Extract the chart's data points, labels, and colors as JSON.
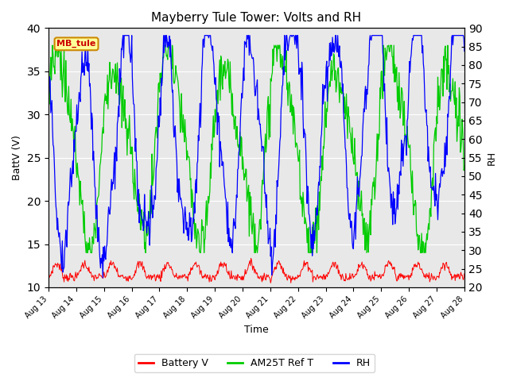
{
  "title": "Mayberry Tule Tower: Volts and RH",
  "xlabel": "Time",
  "ylabel_left": "BattV (V)",
  "ylabel_right": "RH",
  "xlim": [
    0,
    15
  ],
  "ylim_left": [
    10,
    40
  ],
  "ylim_right": [
    20,
    90
  ],
  "yticks_left": [
    10,
    15,
    20,
    25,
    30,
    35,
    40
  ],
  "yticks_right": [
    20,
    25,
    30,
    35,
    40,
    45,
    50,
    55,
    60,
    65,
    70,
    75,
    80,
    85,
    90
  ],
  "xtick_labels": [
    "Aug 13",
    "Aug 14",
    "Aug 15",
    "Aug 16",
    "Aug 17",
    "Aug 18",
    "Aug 19",
    "Aug 20",
    "Aug 21",
    "Aug 22",
    "Aug 23",
    "Aug 24",
    "Aug 25",
    "Aug 26",
    "Aug 27",
    "Aug 28"
  ],
  "legend_labels": [
    "Battery V",
    "AM25T Ref T",
    "RH"
  ],
  "legend_colors": [
    "#ff0000",
    "#00cc00",
    "#0000ff"
  ],
  "annotation_text": "MB_tule",
  "bg_color": "#e8e8e8",
  "line_battery_color": "#ff0000",
  "line_am25t_color": "#00cc00",
  "line_rh_color": "#0000ff",
  "title_fontsize": 11,
  "axis_fontsize": 9,
  "grid_color": "#ffffff"
}
